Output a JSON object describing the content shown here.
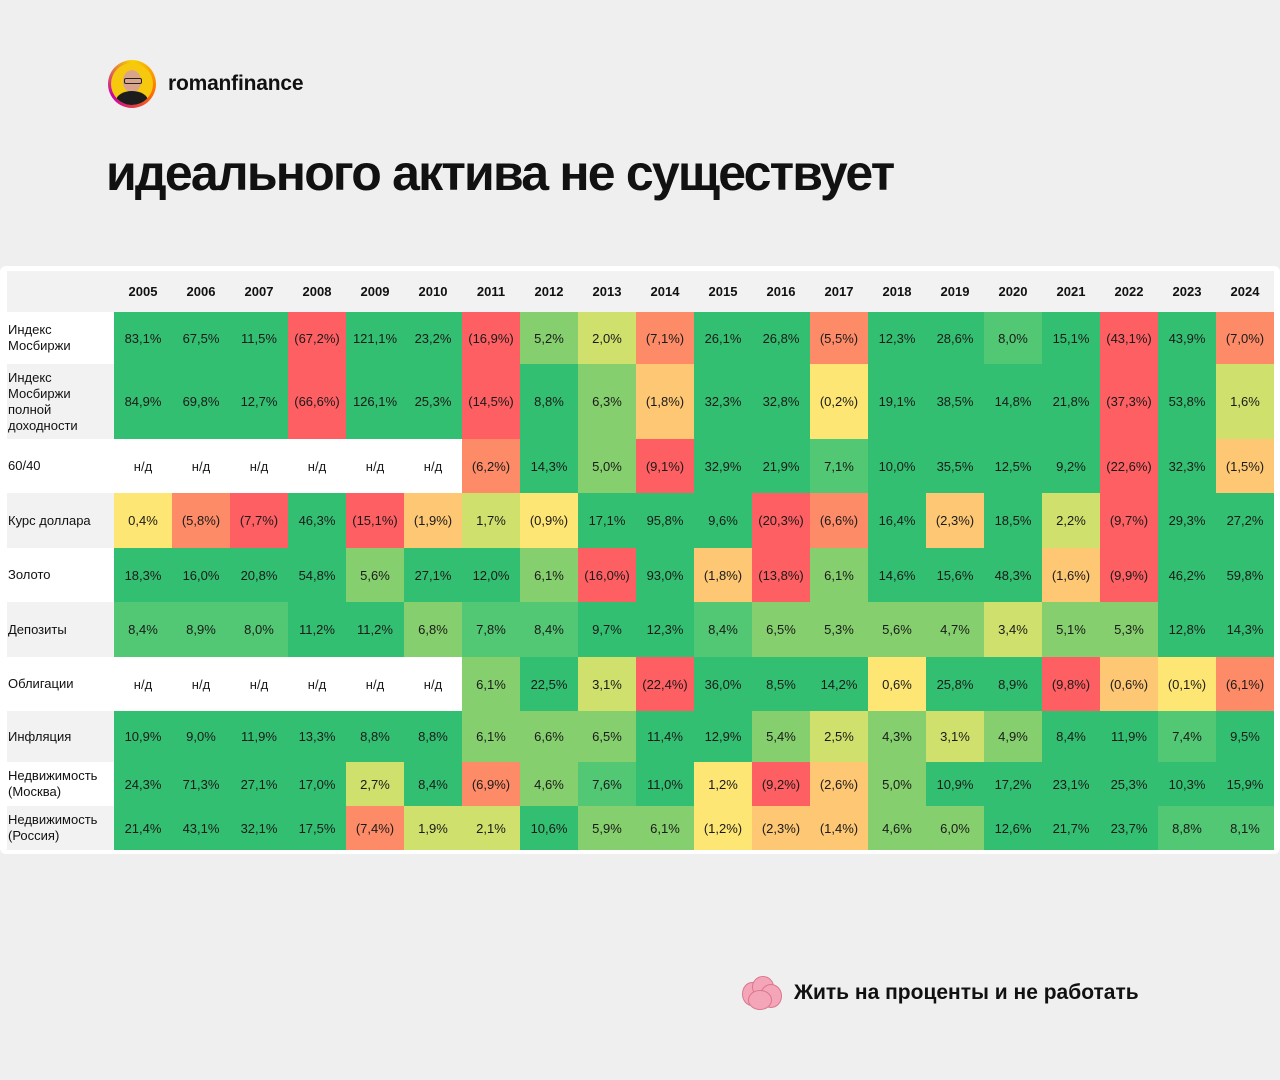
{
  "brand": {
    "name": "romanfinance"
  },
  "title": "идеального актива не существует",
  "footer": {
    "text": "Жить на проценты и не работать",
    "icon": "brain-icon"
  },
  "colors": {
    "dark_green": "#33bf71",
    "mid_green": "#52c774",
    "light_green": "#86cf6e",
    "yellow_green": "#cfe06c",
    "yellow": "#fde674",
    "orange": "#fdc774",
    "coral": "#fe8b67",
    "red": "#fe5f62",
    "none": "#ffffff"
  },
  "table": {
    "years": [
      "2005",
      "2006",
      "2007",
      "2008",
      "2009",
      "2010",
      "2011",
      "2012",
      "2013",
      "2014",
      "2015",
      "2016",
      "2017",
      "2018",
      "2019",
      "2020",
      "2021",
      "2022",
      "2023",
      "2024"
    ],
    "rows": [
      {
        "label": "Индекс Мосбиржи",
        "height": 52,
        "cells": [
          [
            "83,1%",
            "G"
          ],
          [
            "67,5%",
            "G"
          ],
          [
            "11,5%",
            "G"
          ],
          [
            "(67,2%)",
            "R"
          ],
          [
            "121,1%",
            "G"
          ],
          [
            "23,2%",
            "G"
          ],
          [
            "(16,9%)",
            "R"
          ],
          [
            "5,2%",
            "L"
          ],
          [
            "2,0%",
            "Y"
          ],
          [
            "(7,1%)",
            "C"
          ],
          [
            "26,1%",
            "G"
          ],
          [
            "26,8%",
            "G"
          ],
          [
            "(5,5%)",
            "C"
          ],
          [
            "12,3%",
            "G"
          ],
          [
            "28,6%",
            "G"
          ],
          [
            "8,0%",
            "M"
          ],
          [
            "15,1%",
            "G"
          ],
          [
            "(43,1%)",
            "R"
          ],
          [
            "43,9%",
            "G"
          ],
          [
            "(7,0%)",
            "C"
          ]
        ]
      },
      {
        "label": "Индекс Мосбиржи полной доходности",
        "height": 75,
        "cells": [
          [
            "84,9%",
            "G"
          ],
          [
            "69,8%",
            "G"
          ],
          [
            "12,7%",
            "G"
          ],
          [
            "(66,6%)",
            "R"
          ],
          [
            "126,1%",
            "G"
          ],
          [
            "25,3%",
            "G"
          ],
          [
            "(14,5%)",
            "R"
          ],
          [
            "8,8%",
            "G"
          ],
          [
            "6,3%",
            "L"
          ],
          [
            "(1,8%)",
            "O"
          ],
          [
            "32,3%",
            "G"
          ],
          [
            "32,8%",
            "G"
          ],
          [
            "(0,2%)",
            "W"
          ],
          [
            "19,1%",
            "G"
          ],
          [
            "38,5%",
            "G"
          ],
          [
            "14,8%",
            "G"
          ],
          [
            "21,8%",
            "G"
          ],
          [
            "(37,3%)",
            "R"
          ],
          [
            "53,8%",
            "G"
          ],
          [
            "1,6%",
            "Y"
          ]
        ]
      },
      {
        "label": "60/40",
        "height": 54,
        "cells": [
          [
            "н/д",
            "N"
          ],
          [
            "н/д",
            "N"
          ],
          [
            "н/д",
            "N"
          ],
          [
            "н/д",
            "N"
          ],
          [
            "н/д",
            "N"
          ],
          [
            "н/д",
            "N"
          ],
          [
            "(6,2%)",
            "C"
          ],
          [
            "14,3%",
            "G"
          ],
          [
            "5,0%",
            "L"
          ],
          [
            "(9,1%)",
            "R"
          ],
          [
            "32,9%",
            "G"
          ],
          [
            "21,9%",
            "G"
          ],
          [
            "7,1%",
            "M"
          ],
          [
            "10,0%",
            "G"
          ],
          [
            "35,5%",
            "G"
          ],
          [
            "12,5%",
            "G"
          ],
          [
            "9,2%",
            "G"
          ],
          [
            "(22,6%)",
            "R"
          ],
          [
            "32,3%",
            "G"
          ],
          [
            "(1,5%)",
            "O"
          ]
        ]
      },
      {
        "label": "Курс доллара",
        "height": 55,
        "cells": [
          [
            "0,4%",
            "W"
          ],
          [
            "(5,8%)",
            "C"
          ],
          [
            "(7,7%)",
            "R"
          ],
          [
            "46,3%",
            "G"
          ],
          [
            "(15,1%)",
            "R"
          ],
          [
            "(1,9%)",
            "O"
          ],
          [
            "1,7%",
            "Y"
          ],
          [
            "(0,9%)",
            "W"
          ],
          [
            "17,1%",
            "G"
          ],
          [
            "95,8%",
            "G"
          ],
          [
            "9,6%",
            "G"
          ],
          [
            "(20,3%)",
            "R"
          ],
          [
            "(6,6%)",
            "C"
          ],
          [
            "16,4%",
            "G"
          ],
          [
            "(2,3%)",
            "O"
          ],
          [
            "18,5%",
            "G"
          ],
          [
            "2,2%",
            "Y"
          ],
          [
            "(9,7%)",
            "R"
          ],
          [
            "29,3%",
            "G"
          ],
          [
            "27,2%",
            "G"
          ]
        ]
      },
      {
        "label": "Золото",
        "height": 54,
        "cells": [
          [
            "18,3%",
            "G"
          ],
          [
            "16,0%",
            "G"
          ],
          [
            "20,8%",
            "G"
          ],
          [
            "54,8%",
            "G"
          ],
          [
            "5,6%",
            "L"
          ],
          [
            "27,1%",
            "G"
          ],
          [
            "12,0%",
            "G"
          ],
          [
            "6,1%",
            "L"
          ],
          [
            "(16,0%)",
            "R"
          ],
          [
            "93,0%",
            "G"
          ],
          [
            "(1,8%)",
            "O"
          ],
          [
            "(13,8%)",
            "R"
          ],
          [
            "6,1%",
            "L"
          ],
          [
            "14,6%",
            "G"
          ],
          [
            "15,6%",
            "G"
          ],
          [
            "48,3%",
            "G"
          ],
          [
            "(1,6%)",
            "O"
          ],
          [
            "(9,9%)",
            "R"
          ],
          [
            "46,2%",
            "G"
          ],
          [
            "59,8%",
            "G"
          ]
        ]
      },
      {
        "label": "Депозиты",
        "height": 55,
        "cells": [
          [
            "8,4%",
            "M"
          ],
          [
            "8,9%",
            "M"
          ],
          [
            "8,0%",
            "M"
          ],
          [
            "11,2%",
            "G"
          ],
          [
            "11,2%",
            "G"
          ],
          [
            "6,8%",
            "L"
          ],
          [
            "7,8%",
            "M"
          ],
          [
            "8,4%",
            "M"
          ],
          [
            "9,7%",
            "G"
          ],
          [
            "12,3%",
            "G"
          ],
          [
            "8,4%",
            "M"
          ],
          [
            "6,5%",
            "L"
          ],
          [
            "5,3%",
            "L"
          ],
          [
            "5,6%",
            "L"
          ],
          [
            "4,7%",
            "L"
          ],
          [
            "3,4%",
            "Y"
          ],
          [
            "5,1%",
            "L"
          ],
          [
            "5,3%",
            "L"
          ],
          [
            "12,8%",
            "G"
          ],
          [
            "14,3%",
            "G"
          ]
        ]
      },
      {
        "label": "Облигации",
        "height": 54,
        "cells": [
          [
            "н/д",
            "N"
          ],
          [
            "н/д",
            "N"
          ],
          [
            "н/д",
            "N"
          ],
          [
            "н/д",
            "N"
          ],
          [
            "н/д",
            "N"
          ],
          [
            "н/д",
            "N"
          ],
          [
            "6,1%",
            "L"
          ],
          [
            "22,5%",
            "G"
          ],
          [
            "3,1%",
            "Y"
          ],
          [
            "(22,4%)",
            "R"
          ],
          [
            "36,0%",
            "G"
          ],
          [
            "8,5%",
            "G"
          ],
          [
            "14,2%",
            "G"
          ],
          [
            "0,6%",
            "W"
          ],
          [
            "25,8%",
            "G"
          ],
          [
            "8,9%",
            "G"
          ],
          [
            "(9,8%)",
            "R"
          ],
          [
            "(0,6%)",
            "O"
          ],
          [
            "(0,1%)",
            "W"
          ],
          [
            "(6,1%)",
            "C"
          ]
        ]
      },
      {
        "label": "Инфляция",
        "height": 51,
        "cells": [
          [
            "10,9%",
            "G"
          ],
          [
            "9,0%",
            "G"
          ],
          [
            "11,9%",
            "G"
          ],
          [
            "13,3%",
            "G"
          ],
          [
            "8,8%",
            "G"
          ],
          [
            "8,8%",
            "G"
          ],
          [
            "6,1%",
            "L"
          ],
          [
            "6,6%",
            "L"
          ],
          [
            "6,5%",
            "L"
          ],
          [
            "11,4%",
            "G"
          ],
          [
            "12,9%",
            "G"
          ],
          [
            "5,4%",
            "L"
          ],
          [
            "2,5%",
            "Y"
          ],
          [
            "4,3%",
            "L"
          ],
          [
            "3,1%",
            "Y"
          ],
          [
            "4,9%",
            "L"
          ],
          [
            "8,4%",
            "G"
          ],
          [
            "11,9%",
            "G"
          ],
          [
            "7,4%",
            "M"
          ],
          [
            "9,5%",
            "G"
          ]
        ]
      },
      {
        "label": "Недвижимость (Москва)",
        "height": 44,
        "cells": [
          [
            "24,3%",
            "G"
          ],
          [
            "71,3%",
            "G"
          ],
          [
            "27,1%",
            "G"
          ],
          [
            "17,0%",
            "G"
          ],
          [
            "2,7%",
            "Y"
          ],
          [
            "8,4%",
            "G"
          ],
          [
            "(6,9%)",
            "C"
          ],
          [
            "4,6%",
            "L"
          ],
          [
            "7,6%",
            "M"
          ],
          [
            "11,0%",
            "G"
          ],
          [
            "1,2%",
            "W"
          ],
          [
            "(9,2%)",
            "R"
          ],
          [
            "(2,6%)",
            "O"
          ],
          [
            "5,0%",
            "L"
          ],
          [
            "10,9%",
            "G"
          ],
          [
            "17,2%",
            "G"
          ],
          [
            "23,1%",
            "G"
          ],
          [
            "25,3%",
            "G"
          ],
          [
            "10,3%",
            "G"
          ],
          [
            "15,9%",
            "G"
          ]
        ]
      },
      {
        "label": "Недвижимость (Россия)",
        "height": 44,
        "cells": [
          [
            "21,4%",
            "G"
          ],
          [
            "43,1%",
            "G"
          ],
          [
            "32,1%",
            "G"
          ],
          [
            "17,5%",
            "G"
          ],
          [
            "(7,4%)",
            "C"
          ],
          [
            "1,9%",
            "Y"
          ],
          [
            "2,1%",
            "Y"
          ],
          [
            "10,6%",
            "G"
          ],
          [
            "5,9%",
            "L"
          ],
          [
            "6,1%",
            "L"
          ],
          [
            "(1,2%)",
            "W"
          ],
          [
            "(2,3%)",
            "O"
          ],
          [
            "(1,4%)",
            "O"
          ],
          [
            "4,6%",
            "L"
          ],
          [
            "6,0%",
            "L"
          ],
          [
            "12,6%",
            "G"
          ],
          [
            "21,7%",
            "G"
          ],
          [
            "23,7%",
            "G"
          ],
          [
            "8,8%",
            "M"
          ],
          [
            "8,1%",
            "M"
          ]
        ]
      }
    ]
  }
}
